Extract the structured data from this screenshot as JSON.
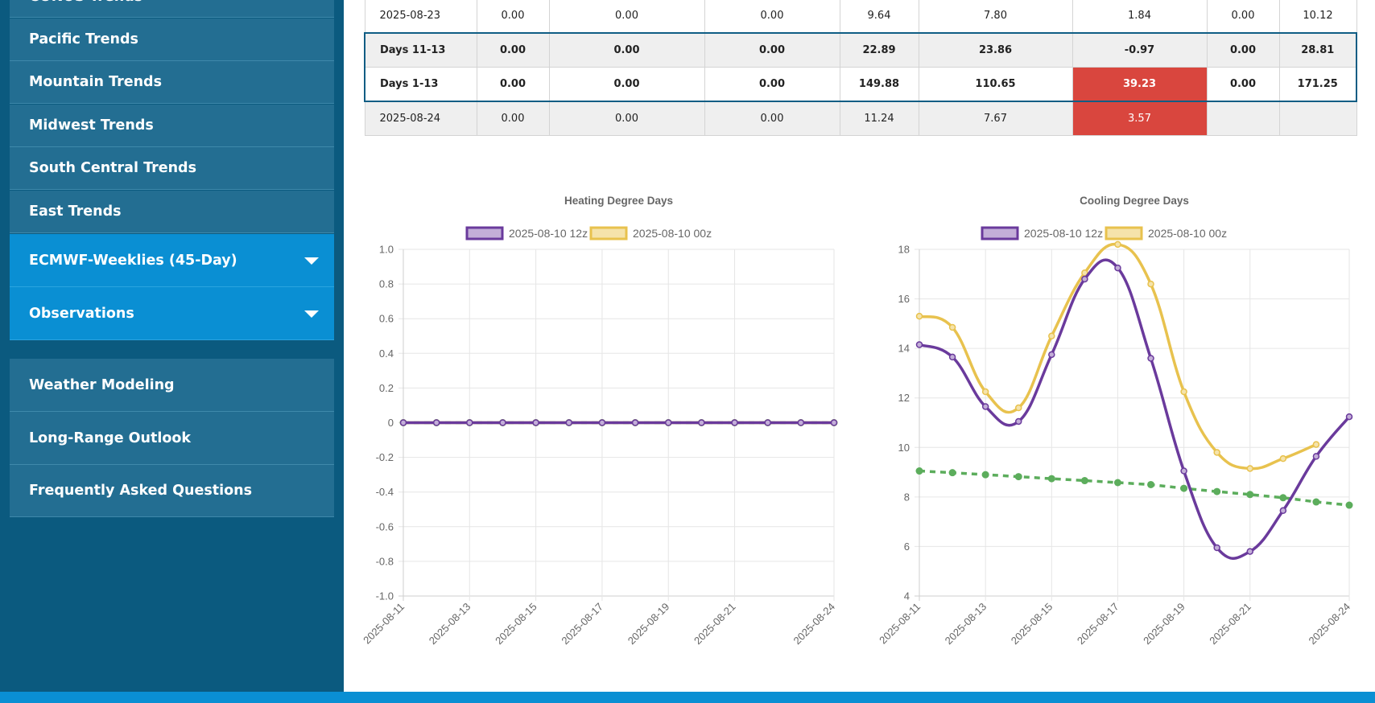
{
  "sidebar": {
    "items": [
      {
        "label": "CONUS Trends",
        "style": "dark",
        "caret": false
      },
      {
        "label": "Pacific Trends",
        "style": "dark",
        "caret": false
      },
      {
        "label": "Mountain Trends",
        "style": "dark",
        "caret": false
      },
      {
        "label": "Midwest Trends",
        "style": "dark",
        "caret": false
      },
      {
        "label": "South Central Trends",
        "style": "dark",
        "caret": false
      },
      {
        "label": "East Trends",
        "style": "dark",
        "caret": false
      },
      {
        "label": "ECMWF-Weeklies (45-Day)",
        "style": "blue",
        "caret": true
      },
      {
        "label": "Observations",
        "style": "blue",
        "caret": true
      },
      {
        "label": "Weather Modeling",
        "style": "dark",
        "caret": false
      },
      {
        "label": "Long-Range Outlook",
        "style": "dark",
        "caret": false
      },
      {
        "label": "Frequently Asked Questions",
        "style": "dark",
        "caret": false
      }
    ]
  },
  "table": {
    "rows": [
      {
        "cells": [
          "2025-08-23",
          "0.00",
          "0.00",
          "0.00",
          "9.64",
          "7.80",
          "1.84",
          "0.00",
          "10.12"
        ],
        "bold": false,
        "shade": "white",
        "red_cols": []
      },
      {
        "cells": [
          "Days 11-13",
          "0.00",
          "0.00",
          "0.00",
          "22.89",
          "23.86",
          "-0.97",
          "0.00",
          "28.81"
        ],
        "bold": true,
        "shade": "grey",
        "red_cols": []
      },
      {
        "cells": [
          "Days 1-13",
          "0.00",
          "0.00",
          "0.00",
          "149.88",
          "110.65",
          "39.23",
          "0.00",
          "171.25"
        ],
        "bold": true,
        "shade": "white",
        "red_cols": [
          6
        ]
      },
      {
        "cells": [
          "2025-08-24",
          "0.00",
          "0.00",
          "0.00",
          "11.24",
          "7.67",
          "3.57",
          "",
          ""
        ],
        "bold": false,
        "shade": "grey",
        "red_cols": [
          6
        ]
      }
    ]
  },
  "chart_data": [
    {
      "type": "line",
      "title": "Heating Degree Days",
      "x": [
        "2025-08-11",
        "2025-08-12",
        "2025-08-13",
        "2025-08-14",
        "2025-08-15",
        "2025-08-16",
        "2025-08-17",
        "2025-08-18",
        "2025-08-19",
        "2025-08-20",
        "2025-08-21",
        "2025-08-22",
        "2025-08-23",
        "2025-08-24"
      ],
      "x_tick_labels": [
        "2025-08-11",
        "2025-08-13",
        "2025-08-15",
        "2025-08-17",
        "2025-08-19",
        "2025-08-21",
        "2025-08-24"
      ],
      "ylim": [
        -1.0,
        1.0
      ],
      "y_ticks": [
        "1.0",
        "0.8",
        "0.6",
        "0.4",
        "0.2",
        "0",
        "-0.2",
        "-0.4",
        "-0.6",
        "-0.8",
        "-1.0"
      ],
      "grid": true,
      "legend_position": "top",
      "series": [
        {
          "name": "2025-08-10 12z",
          "color": "#6a3a9c",
          "fill": "#c3aed8",
          "values": [
            0,
            0,
            0,
            0,
            0,
            0,
            0,
            0,
            0,
            0,
            0,
            0,
            0,
            0
          ],
          "dashed": false,
          "legend": true
        },
        {
          "name": "2025-08-10 00z",
          "color": "#e8c24e",
          "fill": "#f5e3ab",
          "values": [
            0,
            0,
            0,
            0,
            0,
            0,
            0,
            0,
            0,
            0,
            0,
            0,
            0,
            0
          ],
          "dashed": false,
          "legend": true
        },
        {
          "name": "",
          "color": "#5cad5c",
          "fill": "#5cad5c",
          "values": [
            0,
            0,
            0,
            0,
            0,
            0,
            0,
            0,
            0,
            0,
            0,
            0,
            0,
            0
          ],
          "dashed": true,
          "legend": false
        }
      ]
    },
    {
      "type": "line",
      "title": "Cooling Degree Days",
      "x": [
        "2025-08-11",
        "2025-08-12",
        "2025-08-13",
        "2025-08-14",
        "2025-08-15",
        "2025-08-16",
        "2025-08-17",
        "2025-08-18",
        "2025-08-19",
        "2025-08-20",
        "2025-08-21",
        "2025-08-22",
        "2025-08-23",
        "2025-08-24"
      ],
      "x_tick_labels": [
        "2025-08-11",
        "2025-08-13",
        "2025-08-15",
        "2025-08-17",
        "2025-08-19",
        "2025-08-21",
        "2025-08-24"
      ],
      "ylim": [
        4,
        18
      ],
      "y_ticks": [
        "18",
        "16",
        "14",
        "12",
        "10",
        "8",
        "6",
        "4"
      ],
      "grid": true,
      "legend_position": "top",
      "series": [
        {
          "name": "2025-08-10 12z",
          "color": "#6a3a9c",
          "fill": "#c3aed8",
          "values": [
            14.15,
            13.65,
            11.65,
            11.05,
            13.75,
            16.8,
            17.25,
            13.6,
            9.05,
            5.95,
            5.8,
            7.45,
            9.64,
            11.24
          ],
          "dashed": false,
          "legend": true
        },
        {
          "name": "2025-08-10 00z",
          "color": "#e8c24e",
          "fill": "#f5e3ab",
          "values": [
            15.3,
            14.85,
            12.25,
            11.6,
            14.5,
            17.05,
            18.2,
            16.6,
            12.25,
            9.8,
            9.15,
            9.55,
            10.12,
            null
          ],
          "dashed": false,
          "legend": true
        },
        {
          "name": "",
          "color": "#5cad5c",
          "fill": "#5cad5c",
          "values": [
            9.05,
            8.98,
            8.9,
            8.82,
            8.74,
            8.66,
            8.58,
            8.5,
            8.35,
            8.22,
            8.1,
            7.97,
            7.8,
            7.67
          ],
          "dashed": true,
          "legend": false
        }
      ]
    }
  ]
}
